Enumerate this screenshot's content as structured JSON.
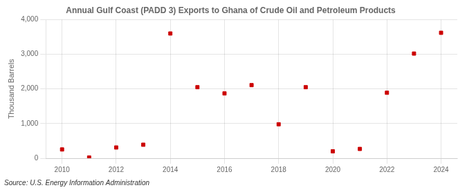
{
  "chart_data": {
    "type": "scatter",
    "title": "Annual Gulf Coast (PADD 3) Exports to Ghana of Crude Oil and Petroleum Products",
    "y_label": "Thousand Barrels",
    "annotation": "Source: U.S. Energy Information Administration",
    "x": [
      2010,
      2011,
      2012,
      2013,
      2014,
      2015,
      2016,
      2017,
      2018,
      2019,
      2020,
      2021,
      2022,
      2023,
      2024
    ],
    "values": [
      253,
      20,
      310,
      390,
      3600,
      2050,
      1870,
      2110,
      980,
      2050,
      200,
      268,
      1890,
      3020,
      3620
    ],
    "color": "#cc0000",
    "marker": "square",
    "xlim": [
      2009.4,
      2024.6
    ],
    "xticks": [
      2010,
      2012,
      2014,
      2016,
      2018,
      2020,
      2022,
      2024
    ],
    "ylim": [
      0,
      4000
    ],
    "yticks": [
      0,
      {
        "value": 1000,
        "label": "1,000"
      },
      {
        "value": 2000,
        "label": "2,000"
      },
      {
        "value": 3000,
        "label": "3,000"
      },
      {
        "value": 4000,
        "label": "4,000"
      }
    ],
    "grid": true
  }
}
